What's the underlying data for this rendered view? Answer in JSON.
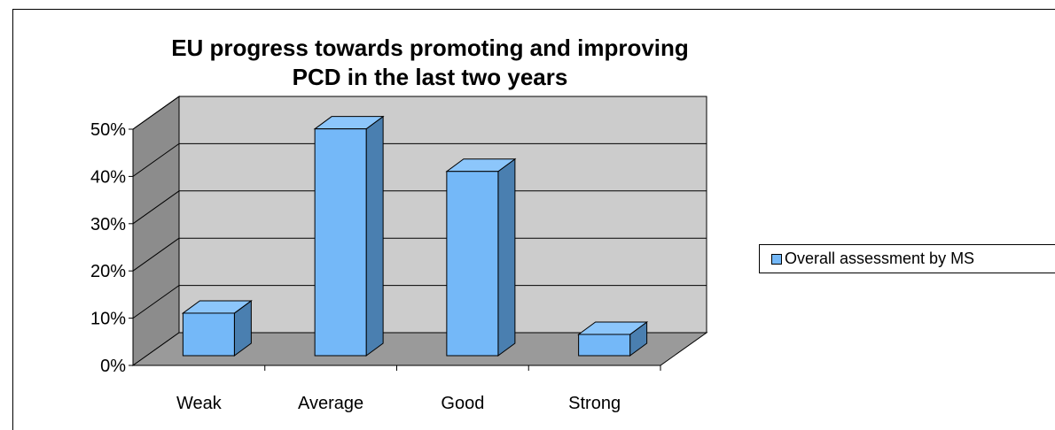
{
  "chart_data": {
    "type": "bar",
    "title_lines": [
      "EU progress towards promoting and improving",
      "PCD in the last two years"
    ],
    "categories": [
      "Weak",
      "Average",
      "Good",
      "Strong"
    ],
    "series": [
      {
        "name": "Overall assessment by MS",
        "values": [
          9,
          48,
          39,
          4.5
        ]
      }
    ],
    "ylim": [
      0,
      50
    ],
    "yticks": [
      "0%",
      "10%",
      "20%",
      "30%",
      "40%",
      "50%"
    ],
    "grid": true,
    "legend_position": "right",
    "style": "3d-column",
    "colors": {
      "bar_front": "#74b8f8",
      "bar_side": "#4a7fb0",
      "bar_top": "#8cc6fb",
      "back_wall": "#cccccc",
      "side_wall": "#8c8c8c",
      "floor": "#9a9a9a"
    }
  }
}
